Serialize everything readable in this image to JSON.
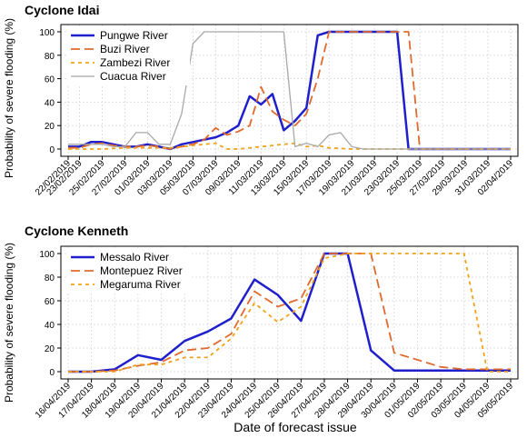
{
  "chart_data": [
    {
      "type": "line",
      "title": "Cyclone Idai",
      "ylabel": "Probability of severe flooding (%)",
      "xlabel": "",
      "ylim": [
        0,
        100
      ],
      "yticks": [
        0,
        20,
        40,
        60,
        80,
        100
      ],
      "grid": true,
      "legend_position": "top-left",
      "x_start": "22/02/2019",
      "x_end": "02/04/2019",
      "tick_labels": [
        "22/02/2019",
        "23/02/2019",
        "25/02/2019",
        "27/02/2019",
        "01/03/2019",
        "03/03/2019",
        "05/03/2019",
        "07/03/2019",
        "09/03/2019",
        "11/03/2019",
        "13/03/2019",
        "15/03/2019",
        "17/03/2019",
        "19/03/2019",
        "21/03/2019",
        "23/03/2019",
        "25/03/2019",
        "27/03/2019",
        "29/03/2019",
        "31/03/2019",
        "02/04/2019"
      ],
      "series": [
        {
          "name": "Pungwe River",
          "color": "#1f1fcc",
          "dash": "solid",
          "width": 2.5,
          "x": [
            "22/02/2019",
            "23/02/2019",
            "24/02/2019",
            "25/02/2019",
            "26/02/2019",
            "27/02/2019",
            "28/02/2019",
            "01/03/2019",
            "02/03/2019",
            "03/03/2019",
            "04/03/2019",
            "05/03/2019",
            "06/03/2019",
            "07/03/2019",
            "08/03/2019",
            "09/03/2019",
            "10/03/2019",
            "11/03/2019",
            "12/03/2019",
            "13/03/2019",
            "14/03/2019",
            "15/03/2019",
            "16/03/2019",
            "17/03/2019",
            "18/03/2019",
            "19/03/2019",
            "20/03/2019",
            "21/03/2019",
            "22/03/2019",
            "23/03/2019",
            "24/03/2019",
            "25/03/2019",
            "02/04/2019"
          ],
          "y": [
            2,
            2,
            6,
            6,
            4,
            2,
            2,
            4,
            2,
            0,
            4,
            6,
            8,
            10,
            14,
            20,
            45,
            38,
            47,
            16,
            24,
            35,
            97,
            100,
            100,
            100,
            100,
            100,
            100,
            100,
            0,
            0,
            0
          ]
        },
        {
          "name": "Buzi River",
          "color": "#e06a2e",
          "dash": "10,5",
          "width": 1.8,
          "x": [
            "22/02/2019",
            "23/02/2019",
            "24/02/2019",
            "25/02/2019",
            "26/02/2019",
            "27/02/2019",
            "28/02/2019",
            "01/03/2019",
            "02/03/2019",
            "03/03/2019",
            "04/03/2019",
            "05/03/2019",
            "06/03/2019",
            "07/03/2019",
            "08/03/2019",
            "09/03/2019",
            "10/03/2019",
            "11/03/2019",
            "12/03/2019",
            "13/03/2019",
            "14/03/2019",
            "15/03/2019",
            "16/03/2019",
            "17/03/2019",
            "18/03/2019",
            "19/03/2019",
            "20/03/2019",
            "21/03/2019",
            "22/03/2019",
            "23/03/2019",
            "24/03/2019",
            "25/03/2019",
            "02/04/2019"
          ],
          "y": [
            1,
            1,
            4,
            5,
            3,
            2,
            2,
            3,
            2,
            0,
            2,
            4,
            8,
            18,
            12,
            15,
            20,
            53,
            32,
            25,
            20,
            30,
            60,
            100,
            100,
            100,
            100,
            100,
            100,
            100,
            100,
            0,
            0
          ]
        },
        {
          "name": "Zambezi River",
          "color": "#f0a21a",
          "dash": "4,4",
          "width": 1.8,
          "x": [
            "22/02/2019",
            "23/02/2019",
            "25/02/2019",
            "27/02/2019",
            "01/03/2019",
            "03/03/2019",
            "05/03/2019",
            "07/03/2019",
            "08/03/2019",
            "09/03/2019",
            "11/03/2019",
            "13/03/2019",
            "14/03/2019",
            "15/03/2019",
            "16/03/2019",
            "17/03/2019",
            "19/03/2019",
            "02/04/2019"
          ],
          "y": [
            0,
            0,
            0,
            1,
            1,
            1,
            3,
            5,
            0,
            0,
            2,
            4,
            5,
            2,
            3,
            1,
            0,
            0
          ]
        },
        {
          "name": "Cuacua River",
          "color": "#a8a8a8",
          "dash": "solid",
          "width": 1.3,
          "x": [
            "22/02/2019",
            "23/02/2019",
            "24/02/2019",
            "25/02/2019",
            "26/02/2019",
            "27/02/2019",
            "28/02/2019",
            "01/03/2019",
            "02/03/2019",
            "03/03/2019",
            "04/03/2019",
            "05/03/2019",
            "06/03/2019",
            "07/03/2019",
            "08/03/2019",
            "09/03/2019",
            "10/03/2019",
            "11/03/2019",
            "12/03/2019",
            "13/03/2019",
            "14/03/2019",
            "15/03/2019",
            "16/03/2019",
            "17/03/2019",
            "18/03/2019",
            "19/03/2019",
            "20/03/2019",
            "02/04/2019"
          ],
          "y": [
            4,
            4,
            4,
            4,
            2,
            2,
            14,
            14,
            4,
            4,
            30,
            90,
            100,
            100,
            100,
            100,
            100,
            100,
            100,
            100,
            2,
            5,
            2,
            12,
            14,
            2,
            0,
            0
          ]
        }
      ]
    },
    {
      "type": "line",
      "title": "Cyclone Kenneth",
      "ylabel": "Probability of severe flooding (%)",
      "xlabel": "Date of forecast issue",
      "ylim": [
        0,
        100
      ],
      "yticks": [
        0,
        20,
        40,
        60,
        80,
        100
      ],
      "grid": true,
      "legend_position": "top-left",
      "x_start": "16/04/2019",
      "x_end": "05/05/2019",
      "tick_labels": [
        "16/04/2019",
        "17/04/2019",
        "18/04/2019",
        "19/04/2019",
        "20/04/2019",
        "21/04/2019",
        "22/04/2019",
        "23/04/2019",
        "24/04/2019",
        "25/04/2019",
        "26/04/2019",
        "27/04/2019",
        "28/04/2019",
        "29/04/2019",
        "30/04/2019",
        "01/05/2019",
        "02/05/2019",
        "03/05/2019",
        "04/05/2019",
        "05/05/2019"
      ],
      "series": [
        {
          "name": "Messalo River",
          "color": "#1f1fcc",
          "dash": "solid",
          "width": 2.5,
          "x": [
            "16/04/2019",
            "17/04/2019",
            "18/04/2019",
            "19/04/2019",
            "20/04/2019",
            "21/04/2019",
            "22/04/2019",
            "23/04/2019",
            "24/04/2019",
            "25/04/2019",
            "26/04/2019",
            "27/04/2019",
            "28/04/2019",
            "29/04/2019",
            "30/04/2019",
            "01/05/2019",
            "02/05/2019",
            "03/05/2019",
            "04/05/2019",
            "05/05/2019"
          ],
          "y": [
            0,
            0,
            2,
            14,
            10,
            26,
            34,
            45,
            78,
            65,
            43,
            100,
            100,
            18,
            1,
            1,
            1,
            1,
            1,
            1
          ]
        },
        {
          "name": "Montepuez River",
          "color": "#e06a2e",
          "dash": "10,5",
          "width": 1.8,
          "x": [
            "16/04/2019",
            "17/04/2019",
            "18/04/2019",
            "19/04/2019",
            "20/04/2019",
            "21/04/2019",
            "22/04/2019",
            "23/04/2019",
            "24/04/2019",
            "25/04/2019",
            "26/04/2019",
            "27/04/2019",
            "28/04/2019",
            "29/04/2019",
            "30/04/2019",
            "01/05/2019",
            "02/05/2019",
            "03/05/2019",
            "04/05/2019",
            "05/05/2019"
          ],
          "y": [
            0,
            0,
            1,
            5,
            8,
            18,
            20,
            32,
            68,
            55,
            62,
            100,
            100,
            100,
            16,
            10,
            4,
            2,
            2,
            2
          ]
        },
        {
          "name": "Megaruma River",
          "color": "#f0a21a",
          "dash": "4,4",
          "width": 1.8,
          "x": [
            "16/04/2019",
            "17/04/2019",
            "18/04/2019",
            "19/04/2019",
            "20/04/2019",
            "21/04/2019",
            "22/04/2019",
            "23/04/2019",
            "24/04/2019",
            "25/04/2019",
            "26/04/2019",
            "27/04/2019",
            "28/04/2019",
            "29/04/2019",
            "30/04/2019",
            "01/05/2019",
            "02/05/2019",
            "03/05/2019",
            "04/05/2019",
            "05/05/2019"
          ],
          "y": [
            0,
            0,
            0,
            6,
            6,
            12,
            12,
            28,
            58,
            42,
            55,
            96,
            100,
            100,
            100,
            100,
            100,
            100,
            0,
            0
          ]
        }
      ]
    }
  ]
}
